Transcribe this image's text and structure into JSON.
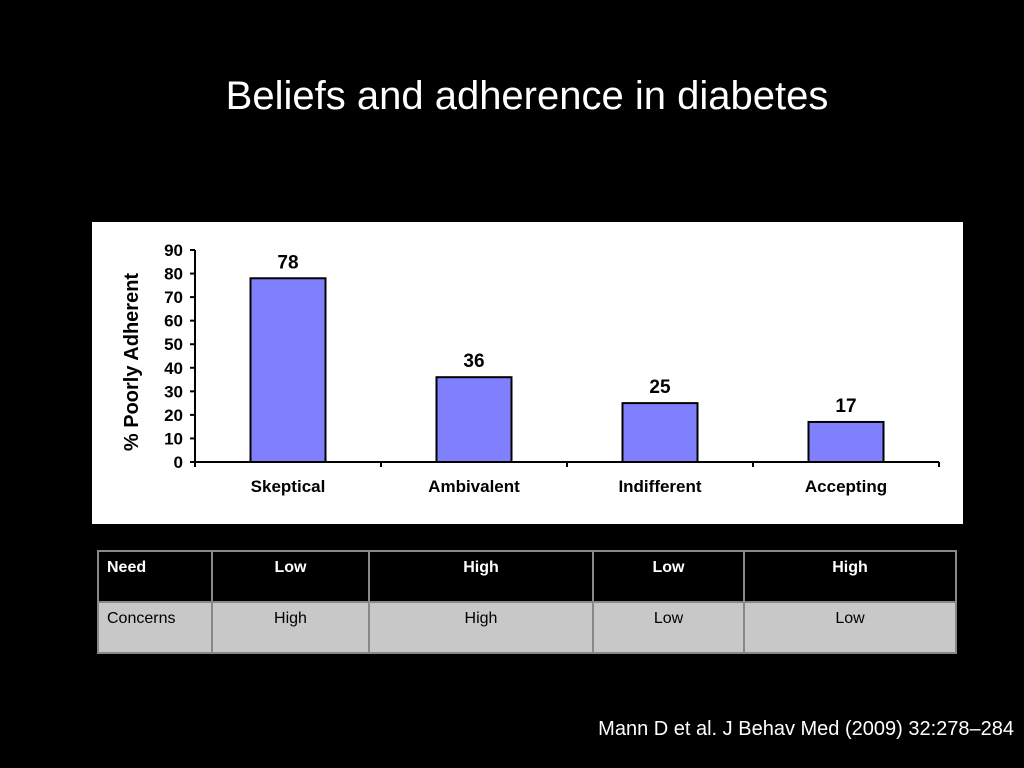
{
  "slide": {
    "title": "Beliefs and adherence in diabetes",
    "citation": "Mann D et al.  J Behav Med (2009) 32:278–284"
  },
  "chart_data": {
    "type": "bar",
    "title": "",
    "xlabel": "",
    "ylabel": "% Poorly Adherent",
    "categories": [
      "Skeptical",
      "Ambivalent",
      "Indifferent",
      "Accepting"
    ],
    "values": [
      78,
      36,
      25,
      17
    ],
    "data_labels": [
      "78",
      "36",
      "25",
      "17"
    ],
    "ylim": [
      0,
      90
    ],
    "yticks": [
      0,
      10,
      20,
      30,
      40,
      50,
      60,
      70,
      80,
      90
    ],
    "grid": false,
    "legend": "none",
    "bar_color": "#8080ff"
  },
  "table": {
    "rows": [
      {
        "label": "Need",
        "cells": [
          "Low",
          "High",
          "Low",
          "High"
        ]
      },
      {
        "label": "Concerns",
        "cells": [
          "High",
          "High",
          "Low",
          "Low"
        ]
      }
    ]
  }
}
